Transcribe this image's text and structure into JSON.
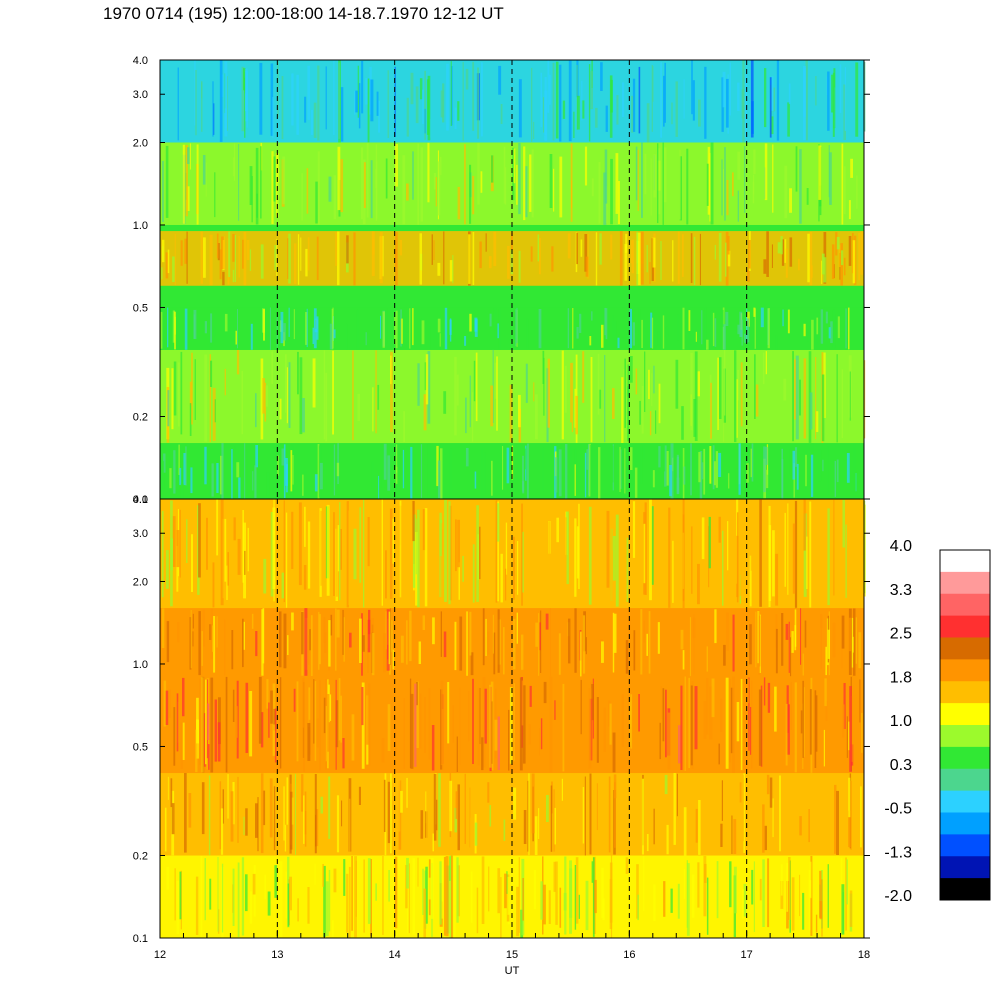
{
  "title": "1970 0714 (195) 12:00-18:00 14-18.7.1970  12-12 UT",
  "chart_data": {
    "type": "heatmap",
    "title": "1970 0714 (195) 12:00-18:00 14-18.7.1970  12-12 UT",
    "xlabel": "UT",
    "ylabel": "",
    "x_range": [
      12,
      18
    ],
    "x_ticks": [
      "12",
      "13",
      "14",
      "15",
      "16",
      "17",
      "18"
    ],
    "y_scale": "log",
    "y_range": [
      0.1,
      4.0
    ],
    "y_ticks": [
      {
        "value": 0.1,
        "label": "0.1"
      },
      {
        "value": 0.2,
        "label": "0.2"
      },
      {
        "value": 0.5,
        "label": "0.5"
      },
      {
        "value": 1.0,
        "label": "1.0"
      },
      {
        "value": 2.0,
        "label": "2.0"
      },
      {
        "value": 3.0,
        "label": "3.0"
      },
      {
        "value": 4.0,
        "label": "4.0"
      }
    ],
    "dashed_gridlines_x": [
      13,
      14,
      15,
      16,
      17
    ],
    "panels": [
      {
        "name": "upper",
        "dominant_level": 0.6,
        "bands": [
          {
            "y_from": 0.1,
            "y_to": 0.16,
            "level": 0.3
          },
          {
            "y_from": 0.16,
            "y_to": 0.35,
            "level": 0.9
          },
          {
            "y_from": 0.35,
            "y_to": 0.5,
            "level": 0.4
          },
          {
            "y_from": 0.6,
            "y_to": 0.95,
            "level": 1.5
          },
          {
            "y_from": 1.0,
            "y_to": 2.0,
            "level": 0.8
          },
          {
            "y_from": 2.0,
            "y_to": 4.0,
            "level": -0.2
          }
        ]
      },
      {
        "name": "lower",
        "dominant_level": 1.7,
        "bands": [
          {
            "y_from": 0.1,
            "y_to": 0.2,
            "level": 1.2
          },
          {
            "y_from": 0.2,
            "y_to": 0.4,
            "level": 1.7
          },
          {
            "y_from": 0.4,
            "y_to": 0.9,
            "level": 2.1
          },
          {
            "y_from": 0.9,
            "y_to": 1.6,
            "level": 1.9
          },
          {
            "y_from": 1.6,
            "y_to": 4.0,
            "level": 1.4
          }
        ]
      }
    ],
    "colorbar": {
      "labels": [
        "4.0",
        "3.3",
        "2.5",
        "1.8",
        "1.0",
        "0.3",
        "-0.5",
        "-1.3",
        "-2.0"
      ],
      "colors": [
        "#ffffff",
        "#ff9a9a",
        "#ff6464",
        "#ff3030",
        "#d76b00",
        "#ff9400",
        "#ffbe00",
        "#ffff00",
        "#9cfa2c",
        "#31e834",
        "#4cd68e",
        "#2cd1ff",
        "#00a0ff",
        "#0050ff",
        "#0014b4",
        "#000000"
      ]
    }
  }
}
